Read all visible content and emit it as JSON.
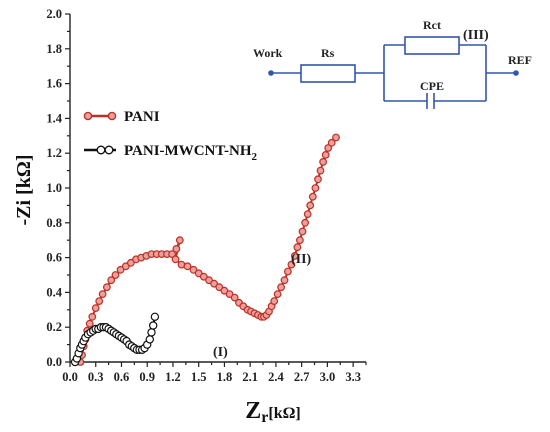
{
  "chart_data": {
    "type": "scatter",
    "xlabel": "Zr[kΩ]",
    "xlabel_main": "Z",
    "xlabel_sub": "r",
    "xlabel_unit": "[kΩ]",
    "ylabel": "-Zi [kΩ]",
    "xlim": [
      0.0,
      3.45
    ],
    "ylim": [
      0.0,
      2.0
    ],
    "x_ticks": [
      "0.0",
      "0.3",
      "0.6",
      "0.9",
      "1.2",
      "1.5",
      "1.8",
      "2.1",
      "2.4",
      "2.7",
      "3.0",
      "3.3"
    ],
    "y_ticks": [
      "0.0",
      "0.2",
      "0.4",
      "0.6",
      "0.8",
      "1.0",
      "1.2",
      "1.4",
      "1.6",
      "1.8",
      "2.0"
    ],
    "legend_position": "left",
    "series": [
      {
        "name": "PANI",
        "color": "#c03020",
        "marker_fill": "#e8a0a0",
        "points": [
          [
            0.12,
            0.0
          ],
          [
            0.14,
            0.04
          ],
          [
            0.16,
            0.09
          ],
          [
            0.18,
            0.13
          ],
          [
            0.2,
            0.18
          ],
          [
            0.23,
            0.22
          ],
          [
            0.26,
            0.26
          ],
          [
            0.3,
            0.31
          ],
          [
            0.34,
            0.35
          ],
          [
            0.38,
            0.39
          ],
          [
            0.43,
            0.43
          ],
          [
            0.48,
            0.47
          ],
          [
            0.53,
            0.5
          ],
          [
            0.59,
            0.53
          ],
          [
            0.65,
            0.55
          ],
          [
            0.71,
            0.57
          ],
          [
            0.77,
            0.59
          ],
          [
            0.83,
            0.6
          ],
          [
            0.89,
            0.61
          ],
          [
            0.95,
            0.62
          ],
          [
            1.01,
            0.62
          ],
          [
            1.07,
            0.62
          ],
          [
            1.13,
            0.62
          ],
          [
            1.19,
            0.62
          ],
          [
            1.24,
            0.65
          ],
          [
            1.28,
            0.7
          ],
          [
            1.23,
            0.59
          ],
          [
            1.3,
            0.56
          ],
          [
            1.37,
            0.55
          ],
          [
            1.44,
            0.53
          ],
          [
            1.5,
            0.51
          ],
          [
            1.56,
            0.49
          ],
          [
            1.62,
            0.47
          ],
          [
            1.68,
            0.45
          ],
          [
            1.74,
            0.43
          ],
          [
            1.8,
            0.41
          ],
          [
            1.86,
            0.39
          ],
          [
            1.92,
            0.37
          ],
          [
            1.97,
            0.34
          ],
          [
            2.02,
            0.32
          ],
          [
            2.07,
            0.3
          ],
          [
            2.11,
            0.29
          ],
          [
            2.15,
            0.28
          ],
          [
            2.19,
            0.27
          ],
          [
            2.23,
            0.26
          ],
          [
            2.26,
            0.26
          ],
          [
            2.29,
            0.27
          ],
          [
            2.32,
            0.29
          ],
          [
            2.35,
            0.32
          ],
          [
            2.38,
            0.35
          ],
          [
            2.42,
            0.39
          ],
          [
            2.46,
            0.43
          ],
          [
            2.5,
            0.47
          ],
          [
            2.54,
            0.52
          ],
          [
            2.58,
            0.56
          ],
          [
            2.62,
            0.61
          ],
          [
            2.65,
            0.66
          ],
          [
            2.68,
            0.7
          ],
          [
            2.71,
            0.75
          ],
          [
            2.74,
            0.8
          ],
          [
            2.77,
            0.85
          ],
          [
            2.8,
            0.9
          ],
          [
            2.83,
            0.95
          ],
          [
            2.86,
            1.0
          ],
          [
            2.89,
            1.05
          ],
          [
            2.92,
            1.1
          ],
          [
            2.95,
            1.15
          ],
          [
            2.98,
            1.19
          ],
          [
            3.01,
            1.23
          ],
          [
            3.05,
            1.26
          ],
          [
            3.1,
            1.29
          ]
        ]
      },
      {
        "name": "PANI-MWCNT-NH2",
        "color": "#111111",
        "marker_fill": "#ffffff",
        "points": [
          [
            0.06,
            0.0
          ],
          [
            0.08,
            0.02
          ],
          [
            0.1,
            0.05
          ],
          [
            0.12,
            0.08
          ],
          [
            0.14,
            0.1
          ],
          [
            0.16,
            0.12
          ],
          [
            0.18,
            0.14
          ],
          [
            0.21,
            0.16
          ],
          [
            0.24,
            0.17
          ],
          [
            0.27,
            0.18
          ],
          [
            0.3,
            0.19
          ],
          [
            0.33,
            0.19
          ],
          [
            0.36,
            0.2
          ],
          [
            0.39,
            0.2
          ],
          [
            0.42,
            0.2
          ],
          [
            0.45,
            0.19
          ],
          [
            0.48,
            0.18
          ],
          [
            0.51,
            0.17
          ],
          [
            0.54,
            0.16
          ],
          [
            0.57,
            0.15
          ],
          [
            0.6,
            0.14
          ],
          [
            0.63,
            0.13
          ],
          [
            0.66,
            0.12
          ],
          [
            0.69,
            0.1
          ],
          [
            0.72,
            0.09
          ],
          [
            0.75,
            0.08
          ],
          [
            0.78,
            0.07
          ],
          [
            0.81,
            0.07
          ],
          [
            0.84,
            0.07
          ],
          [
            0.87,
            0.08
          ],
          [
            0.9,
            0.1
          ],
          [
            0.93,
            0.13
          ],
          [
            0.95,
            0.17
          ],
          [
            0.97,
            0.21
          ],
          [
            0.99,
            0.26
          ]
        ]
      }
    ],
    "annotations": [
      "(I)",
      "(II)",
      "(III)"
    ]
  },
  "legend": {
    "series1": "PANI",
    "series2_main": "PANI-MWCNT-NH",
    "series2_sub": "2"
  },
  "circuit": {
    "work": "Work",
    "rs": "Rs",
    "rct": "Rct",
    "cpe": "CPE",
    "ref": "REF",
    "label": "(III)",
    "wire_color": "#3355aa"
  },
  "annotations": {
    "region1": "(I)",
    "region2": "(II)"
  }
}
